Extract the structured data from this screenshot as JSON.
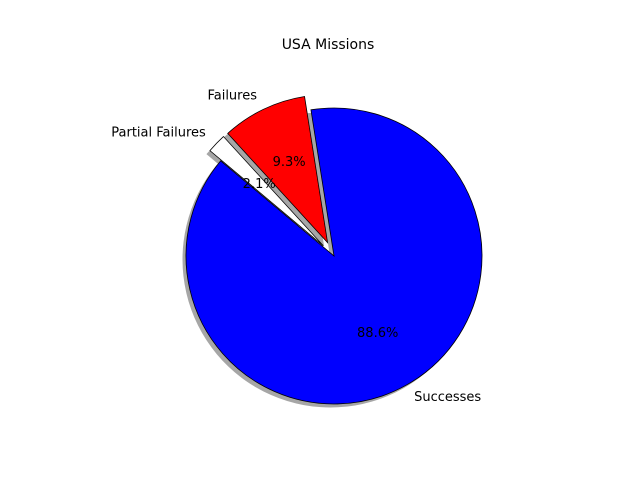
{
  "chart_data": {
    "type": "pie",
    "title": "USA Missions",
    "categories": [
      "Successes",
      "Failures",
      "Partial Failures"
    ],
    "values": [
      88.6,
      9.3,
      2.1
    ],
    "percent_labels": [
      "88.6%",
      "9.3%",
      "2.1%"
    ],
    "colors": [
      "#0000ff",
      "#ff0000",
      "#ffffff"
    ],
    "exploded": [
      false,
      true,
      true
    ],
    "shadow": true,
    "start_angle_deg": 140,
    "edge_color": "#000000"
  }
}
